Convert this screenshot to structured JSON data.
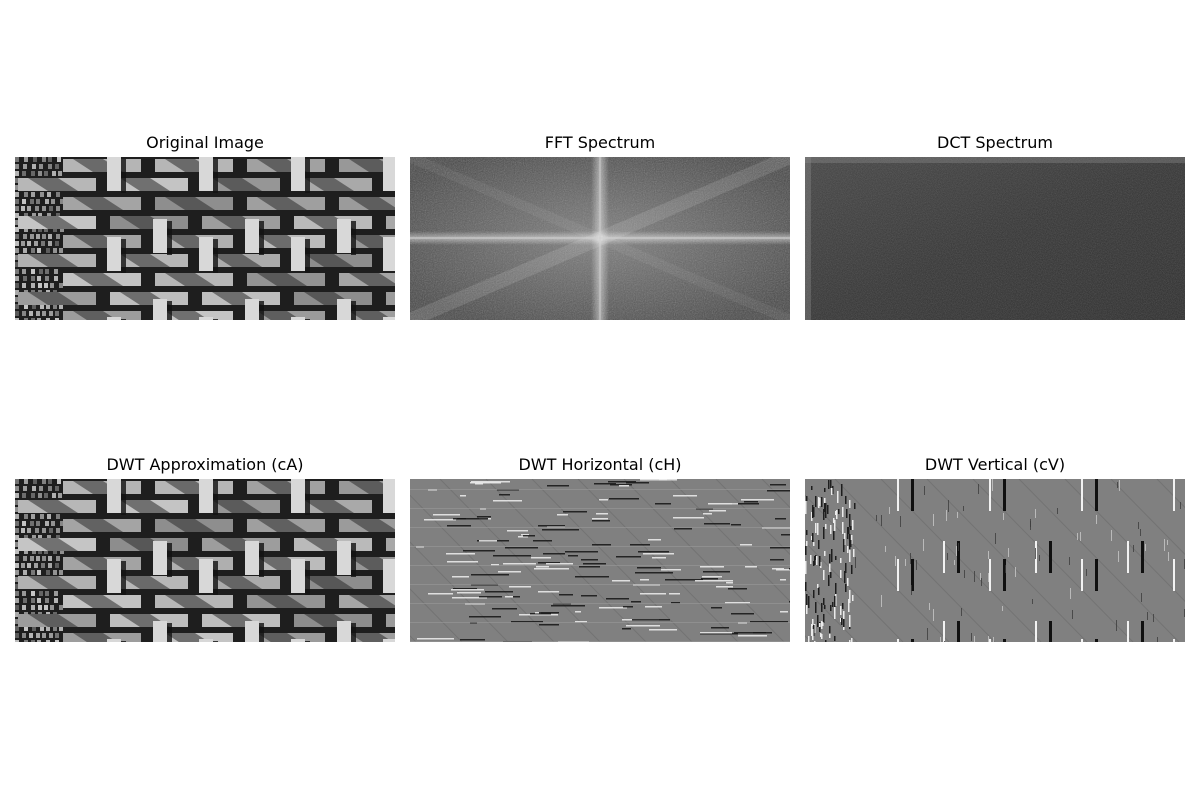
{
  "panels": [
    {
      "title": "Original Image"
    },
    {
      "title": "FFT Spectrum"
    },
    {
      "title": "DCT Spectrum"
    },
    {
      "title": "DWT Approximation (cA)"
    },
    {
      "title": "DWT Horizontal (cH)"
    },
    {
      "title": "DWT Vertical (cV)"
    }
  ]
}
